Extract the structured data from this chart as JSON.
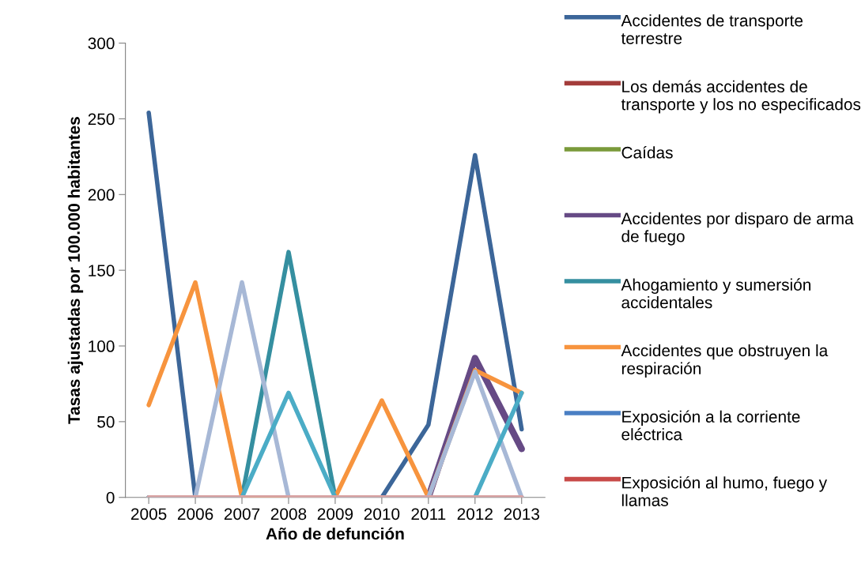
{
  "chart_data": {
    "type": "line",
    "xlabel": "Año de defunción",
    "ylabel": "Tasas ajustadas por 100.000 habitantes",
    "categories": [
      "2005",
      "2006",
      "2007",
      "2008",
      "2009",
      "2010",
      "2011",
      "2012",
      "2013"
    ],
    "ylim": [
      0,
      300
    ],
    "yticks": [
      0,
      50,
      100,
      150,
      200,
      250,
      300
    ],
    "grid": false,
    "legend": "right",
    "marker": "none",
    "line_style": "solid",
    "series": [
      {
        "name": "Accidentes de transporte terrestre",
        "color": "#3c6699",
        "values": [
          254,
          0,
          0,
          0,
          0,
          0,
          48,
          226,
          45
        ]
      },
      {
        "name": "Los demás accidentes de transporte y los no especificados",
        "color": "#a33c3a",
        "values": [
          null,
          null,
          null,
          null,
          null,
          null,
          null,
          null,
          null
        ]
      },
      {
        "name": "Caídas",
        "color": "#7a9a3a",
        "values": [
          null,
          null,
          null,
          null,
          null,
          null,
          null,
          null,
          null
        ]
      },
      {
        "name": "Accidentes por disparo de arma de fuego",
        "color": "#664a85",
        "values": [
          null,
          null,
          null,
          null,
          null,
          null,
          0,
          92,
          32
        ]
      },
      {
        "name": "Ahogamiento y sumersión accidentales",
        "color": "#358fa0",
        "values": [
          0,
          0,
          0,
          162,
          0,
          0,
          0,
          0,
          0
        ]
      },
      {
        "name": "Accidentes que obstruyen la respiración",
        "color": "#f7943e",
        "values": [
          61,
          142,
          0,
          0,
          0,
          64,
          0,
          84,
          69
        ]
      },
      {
        "name": "Exposición a la corriente eléctrica",
        "color": "#4a7fc4",
        "values": [
          null,
          null,
          null,
          null,
          null,
          null,
          null,
          null,
          null
        ]
      },
      {
        "name": "Exposición al humo, fuego y llamas",
        "color": "#c84a48",
        "values": [
          null,
          null,
          null,
          null,
          null,
          null,
          null,
          null,
          null
        ]
      },
      {
        "color": "#a7b8d6",
        "values": [
          0,
          0,
          142,
          0,
          0,
          0,
          0,
          83,
          0
        ]
      },
      {
        "color": "#4bacc6",
        "values": [
          0,
          0,
          0,
          69,
          0,
          0,
          0,
          0,
          69
        ]
      },
      {
        "color": "#d9a3a3",
        "values": [
          0,
          0,
          0,
          0,
          0,
          0,
          0,
          0,
          0
        ]
      }
    ]
  }
}
